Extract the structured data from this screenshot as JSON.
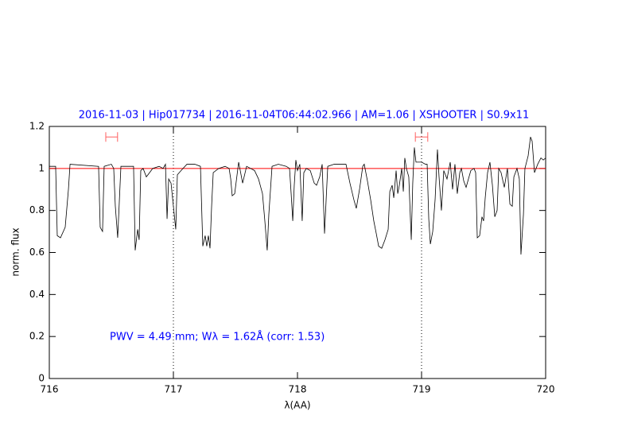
{
  "chart_data": {
    "type": "line",
    "title": "2016-11-03 | Hip017734 | 2016-11-04T06:44:02.966 | AM=1.06 | XSHOOTER | S0.9x11",
    "xlabel": "λ(AA)",
    "ylabel": "norm. flux",
    "annotation": "PWV = 4.49 mm; Wλ = 1.62Å (corr: 1.53)",
    "xlim": [
      716,
      720
    ],
    "ylim": [
      0,
      1.2
    ],
    "xticks": [
      716,
      717,
      718,
      719,
      720
    ],
    "yticks": [
      0,
      0.2,
      0.4,
      0.6,
      0.8,
      1,
      1.2
    ],
    "vlines": [
      717,
      719
    ],
    "hline": 1,
    "hline_color": "#ff0000",
    "ranges": [
      {
        "x": [
          716.455,
          716.55
        ],
        "y": 1.15
      },
      {
        "x": [
          718.95,
          719.05
        ],
        "y": 1.15
      }
    ],
    "range_color": "#ff6060",
    "series": [
      {
        "color": "#000000",
        "x": [
          716.0,
          716.051,
          716.064,
          716.09,
          716.128,
          716.154,
          716.167,
          716.397,
          716.41,
          716.429,
          716.442,
          716.5,
          716.519,
          716.532,
          716.551,
          716.577,
          716.679,
          716.692,
          716.712,
          716.724,
          716.737,
          716.756,
          716.782,
          716.808,
          716.833,
          716.885,
          716.917,
          716.936,
          716.949,
          716.962,
          716.981,
          717.0,
          717.019,
          717.032,
          717.077,
          717.109,
          717.173,
          717.218,
          717.237,
          717.256,
          717.269,
          717.282,
          717.295,
          717.308,
          717.321,
          717.365,
          717.417,
          717.449,
          717.462,
          717.474,
          717.494,
          717.526,
          717.558,
          717.59,
          717.622,
          717.654,
          717.686,
          717.718,
          717.737,
          717.756,
          717.769,
          717.795,
          717.846,
          717.91,
          717.936,
          717.949,
          717.962,
          717.974,
          717.987,
          718.0,
          718.019,
          718.038,
          718.051,
          718.071,
          718.103,
          718.135,
          718.154,
          718.179,
          718.199,
          718.218,
          718.231,
          718.244,
          718.295,
          718.359,
          718.391,
          718.423,
          718.455,
          718.474,
          718.5,
          718.526,
          718.538,
          718.564,
          718.59,
          718.615,
          718.635,
          718.654,
          718.679,
          718.705,
          718.731,
          718.744,
          718.763,
          718.776,
          718.795,
          718.808,
          718.821,
          718.84,
          718.853,
          718.865,
          718.878,
          718.897,
          718.917,
          718.929,
          718.942,
          718.955,
          719.0,
          719.032,
          719.045,
          719.058,
          719.071,
          719.09,
          719.109,
          719.128,
          719.141,
          719.16,
          719.179,
          719.205,
          719.231,
          719.25,
          719.269,
          719.288,
          719.308,
          719.321,
          719.34,
          719.359,
          719.378,
          719.397,
          719.423,
          719.436,
          719.449,
          719.468,
          719.487,
          719.5,
          719.513,
          719.532,
          719.551,
          719.571,
          719.59,
          719.609,
          719.622,
          719.641,
          719.667,
          719.692,
          719.712,
          719.731,
          719.744,
          719.769,
          719.788,
          719.801,
          719.821,
          719.833,
          719.859,
          719.878,
          719.891,
          719.91,
          719.936,
          719.962,
          719.981,
          720.0
        ],
        "values": [
          1.01,
          1.01,
          0.68,
          0.67,
          0.72,
          0.9,
          1.02,
          1.01,
          0.72,
          0.7,
          1.01,
          1.02,
          1.0,
          0.82,
          0.67,
          1.01,
          1.01,
          0.61,
          0.71,
          0.66,
          0.99,
          1.0,
          0.96,
          0.98,
          1.0,
          1.01,
          1.0,
          1.02,
          0.76,
          0.95,
          0.93,
          0.82,
          0.71,
          0.97,
          1.0,
          1.02,
          1.02,
          1.01,
          0.63,
          0.68,
          0.63,
          0.68,
          0.62,
          0.82,
          0.98,
          1.0,
          1.01,
          1.0,
          0.95,
          0.87,
          0.88,
          1.03,
          0.93,
          1.01,
          1.0,
          0.99,
          0.95,
          0.88,
          0.75,
          0.61,
          0.78,
          1.01,
          1.02,
          1.01,
          1.0,
          0.88,
          0.75,
          0.92,
          1.04,
          0.99,
          1.02,
          0.75,
          0.98,
          1.0,
          0.99,
          0.93,
          0.92,
          0.96,
          1.02,
          0.69,
          0.85,
          1.01,
          1.02,
          1.02,
          1.02,
          0.93,
          0.85,
          0.81,
          0.9,
          1.01,
          1.02,
          0.94,
          0.85,
          0.75,
          0.69,
          0.63,
          0.62,
          0.66,
          0.71,
          0.89,
          0.92,
          0.86,
          0.99,
          0.88,
          0.92,
          1.0,
          0.89,
          1.05,
          1.0,
          0.96,
          0.66,
          0.93,
          1.1,
          1.03,
          1.03,
          1.02,
          1.02,
          0.76,
          0.64,
          0.7,
          0.85,
          1.09,
          0.96,
          0.8,
          0.99,
          0.95,
          1.03,
          0.9,
          1.02,
          0.88,
          0.98,
          1.0,
          0.94,
          0.91,
          0.95,
          0.99,
          1.0,
          0.98,
          0.67,
          0.68,
          0.77,
          0.75,
          0.86,
          0.98,
          1.03,
          0.92,
          0.77,
          0.8,
          1.0,
          0.98,
          0.91,
          1.0,
          0.83,
          0.82,
          0.96,
          1.0,
          0.95,
          0.59,
          0.78,
          1.0,
          1.06,
          1.15,
          1.13,
          0.98,
          1.02,
          1.05,
          1.04,
          1.05
        ]
      }
    ]
  }
}
